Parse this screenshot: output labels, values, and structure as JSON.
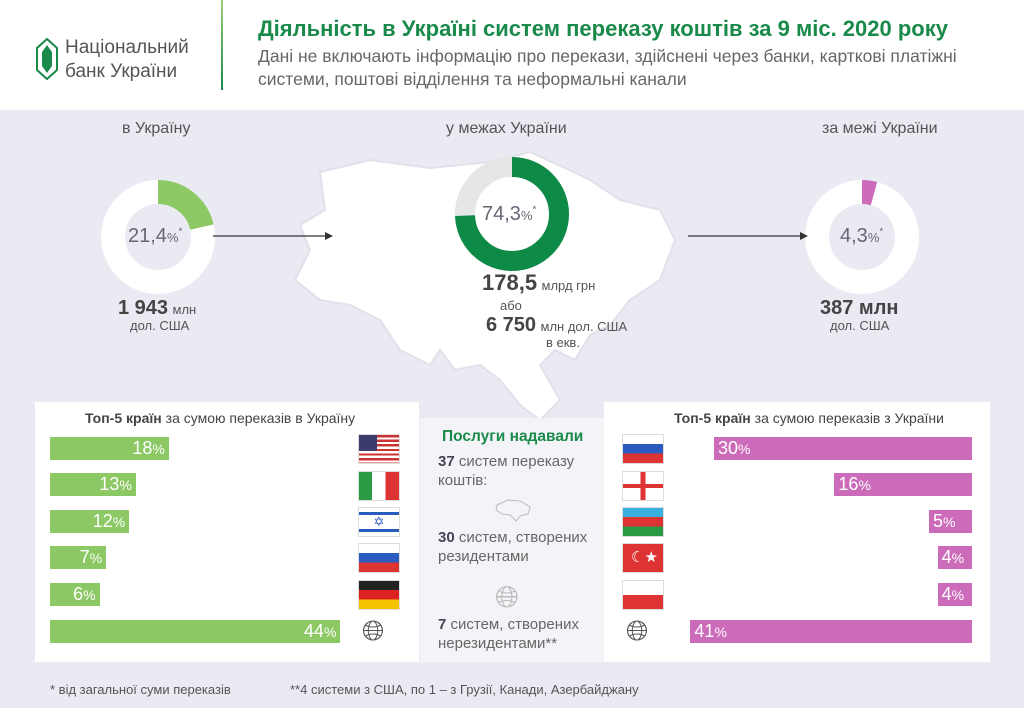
{
  "header": {
    "logo_line1": "Національний",
    "logo_line2": "банк України",
    "title": "Діяльність в Україні систем переказу коштів за 9 міс. 2020 року",
    "subtitle": "Дані не включають інформацію про перекази, здійснені через банки, карткові платіжні системи, поштові відділення та неформальні канали"
  },
  "inbound": {
    "label": "в Україну",
    "percent": "21,4",
    "amount": "1 943",
    "unit": "млн",
    "currency": "дол. США"
  },
  "domestic": {
    "label": "у межах України",
    "percent": "74,3",
    "amount_uah": "178,5",
    "unit_uah": "млрд грн",
    "or": "або",
    "amount_usd": "6 750",
    "unit_usd": "млн дол. США",
    "equiv": "в екв."
  },
  "outbound": {
    "label": "за межі України",
    "percent": "4,3",
    "amount": "387 млн",
    "currency": "дол. США"
  },
  "pct_sign": "%",
  "star": "*",
  "left_panel": {
    "title_bold": "Топ-5 країн",
    "title_rest": " за сумою переказів в Україну"
  },
  "right_panel": {
    "title_bold": "Топ-5 країн",
    "title_rest": " за сумою переказів з України"
  },
  "services": {
    "title": "Послуги надавали",
    "n1": "37",
    "t1": " систем переказу коштів:",
    "n2": "30",
    "t2": " систем, створених резидентами",
    "n3": "7",
    "t3": " систем, створених нерезидентами**"
  },
  "footnotes": {
    "f1": "* від загальної суми переказів",
    "f2": "**4 системи з США, по 1 – з Грузії, Канади, Азербайджану"
  },
  "colors": {
    "green": "#1a8a4a",
    "light_green": "#8cc864",
    "pink": "#cc6bb9"
  },
  "chart_data": [
    {
      "type": "pie",
      "title": "в Україну",
      "values": [
        21.4,
        78.6
      ],
      "labels": [
        "в Україну",
        "інше"
      ]
    },
    {
      "type": "pie",
      "title": "у межах України",
      "values": [
        74.3,
        25.7
      ],
      "labels": [
        "у межах України",
        "інше"
      ]
    },
    {
      "type": "pie",
      "title": "за межі України",
      "values": [
        4.3,
        95.7
      ],
      "labels": [
        "за межі України",
        "інше"
      ]
    },
    {
      "type": "bar",
      "title": "Топ-5 країн за сумою переказів в Україну",
      "categories": [
        "США",
        "Італія",
        "Ізраїль",
        "Росія",
        "Німеччина",
        "Інші"
      ],
      "values": [
        18,
        13,
        12,
        7,
        6,
        44
      ],
      "labels": [
        "18",
        "13",
        "12",
        "7",
        "6",
        "44"
      ]
    },
    {
      "type": "bar",
      "title": "Топ-5 країн за сумою переказів з України",
      "categories": [
        "Росія",
        "Грузія",
        "Азербайджан",
        "Туреччина",
        "Польща",
        "Інші"
      ],
      "values": [
        30,
        16,
        5,
        4,
        4,
        41
      ],
      "labels": [
        "30",
        "16",
        "5",
        "4",
        "4",
        "41"
      ]
    }
  ]
}
